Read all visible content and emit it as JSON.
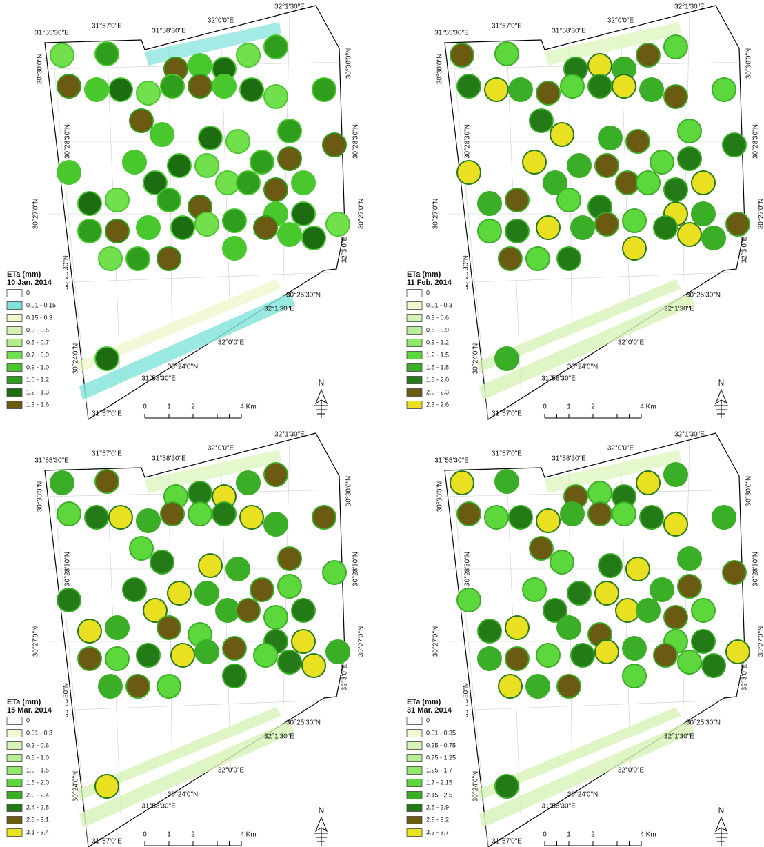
{
  "panels": [
    {
      "legend": {
        "title": "ETa (mm)",
        "date": "10 Jan. 2014",
        "classes": [
          {
            "label": "0",
            "color": "#ffffff"
          },
          {
            "label": "0.01 - 0.15",
            "color": "#7fe3da"
          },
          {
            "label": "0.15 - 0.3",
            "color": "#edf8cc"
          },
          {
            "label": "0.3 - 0.5",
            "color": "#d6f1b4"
          },
          {
            "label": "0.5 - 0.7",
            "color": "#b6ec8c"
          },
          {
            "label": "0.7 - 0.9",
            "color": "#72e04c"
          },
          {
            "label": "0.9 - 1.0",
            "color": "#48c82c"
          },
          {
            "label": "1.0 - 1.2",
            "color": "#2f9e1c"
          },
          {
            "label": "1.2 - 1.3",
            "color": "#1d6c12"
          },
          {
            "label": "1.3 - 1.6",
            "color": "#6b5a12"
          }
        ]
      },
      "coords": [
        "31°55'30\"E",
        "31°57'0\"E",
        "31°58'30\"E",
        "32°0'0\"E",
        "32°1'30\"E",
        "30°30'0\"N",
        "30°28'30\"N",
        "30°27'0\"N",
        "30°25'30\"N",
        "30°24'0\"N",
        "30°30'0\"N",
        "30°28'30\"N",
        "30°27'0\"N",
        "32°3'0\"E",
        "30°25'30\"N",
        "32°1'30\"E",
        "32°0'0\"E",
        "30°24'0\"N",
        "31°58'30\"E",
        "31°57'0\"E"
      ],
      "scale": [
        "0",
        "1",
        "2",
        "4 Km"
      ],
      "north": "N"
    },
    {
      "legend": {
        "title": "ETa (mm)",
        "date": "11 Feb. 2014",
        "classes": [
          {
            "label": "0",
            "color": "#ffffff"
          },
          {
            "label": "0.01 - 0.3",
            "color": "#eefad2"
          },
          {
            "label": "0.3 - 0.6",
            "color": "#d8f3b8"
          },
          {
            "label": "0.6 - 0.9",
            "color": "#b8ee98"
          },
          {
            "label": "0.9 - 1.2",
            "color": "#8ee86a"
          },
          {
            "label": "1.2 - 1.5",
            "color": "#5cd83c"
          },
          {
            "label": "1.5 - 1.8",
            "color": "#3aae26"
          },
          {
            "label": "1.8 - 2.0",
            "color": "#237a16"
          },
          {
            "label": "2.0 - 2.3",
            "color": "#6b5a12"
          },
          {
            "label": "2.3 - 2.6",
            "color": "#e8e020"
          }
        ]
      },
      "coords": [
        "31°55'30\"E",
        "31°57'0\"E",
        "31°58'30\"E",
        "32°0'0\"E",
        "32°1'30\"E",
        "30°30'0\"N",
        "30°28'30\"N",
        "30°27'0\"N",
        "30°25'30\"N",
        "30°24'0\"N",
        "30°30'0\"N",
        "30°28'30\"N",
        "30°27'0\"N",
        "32°3'0\"E",
        "30°25'30\"N",
        "32°1'30\"E",
        "32°0'0\"E",
        "30°24'0\"N",
        "31°58'30\"E",
        "31°57'0\"E"
      ],
      "scale": [
        "0",
        "1",
        "2",
        "4 Km"
      ],
      "north": "N"
    },
    {
      "legend": {
        "title": "ETa (mm)",
        "date": "15 Mar. 2014",
        "classes": [
          {
            "label": "0",
            "color": "#ffffff"
          },
          {
            "label": "0.01 - 0.3",
            "color": "#eefad2"
          },
          {
            "label": "0.3 - 0.6",
            "color": "#d8f3b8"
          },
          {
            "label": "0.6 - 1.0",
            "color": "#b8ee98"
          },
          {
            "label": "1.0 - 1.5",
            "color": "#8ee86a"
          },
          {
            "label": "1.5 - 2.0",
            "color": "#5cd83c"
          },
          {
            "label": "2.0 - 2.4",
            "color": "#3aae26"
          },
          {
            "label": "2.4 - 2.8",
            "color": "#237a16"
          },
          {
            "label": "2.8 - 3.1",
            "color": "#6b5a12"
          },
          {
            "label": "3.1 - 3.4",
            "color": "#e8e020"
          }
        ]
      },
      "coords": [
        "31°55'30\"E",
        "31°57'0\"E",
        "31°58'30\"E",
        "32°0'0\"E",
        "32°1'30\"E",
        "30°30'0\"N",
        "30°28'30\"N",
        "30°27'0\"N",
        "30°25'30\"N",
        "30°24'0\"N",
        "30°30'0\"N",
        "30°28'30\"N",
        "30°27'0\"N",
        "32°3'0\"E",
        "30°25'30\"N",
        "32°1'30\"E",
        "32°0'0\"E",
        "30°24'0\"N",
        "31°58'30\"E",
        "31°57'0\"E"
      ],
      "scale": [
        "0",
        "1",
        "2",
        "4 Km"
      ],
      "north": "N"
    },
    {
      "legend": {
        "title": "ETa (mm)",
        "date": "31 Mar. 2014",
        "classes": [
          {
            "label": "0",
            "color": "#ffffff"
          },
          {
            "label": "0.01 - 0.35",
            "color": "#eefad2"
          },
          {
            "label": "0.35 - 0.75",
            "color": "#d8f3b8"
          },
          {
            "label": "0.75 - 1.25",
            "color": "#b8ee98"
          },
          {
            "label": "1.25 - 1.7",
            "color": "#8ee86a"
          },
          {
            "label": "1.7 - 2.15",
            "color": "#5cd83c"
          },
          {
            "label": "2.15 - 2.5",
            "color": "#3aae26"
          },
          {
            "label": "2.5 - 2.9",
            "color": "#237a16"
          },
          {
            "label": "2.9 - 3.2",
            "color": "#6b5a12"
          },
          {
            "label": "3.2 - 3.7",
            "color": "#e8e020"
          }
        ]
      },
      "coords": [
        "31°55'30\"E",
        "31°57'0\"E",
        "31°58'30\"E",
        "32°0'0\"E",
        "32°1'30\"E",
        "30°30'0\"N",
        "30°28'30\"N",
        "30°27'0\"N",
        "30°25'30\"N",
        "30°24'0\"N",
        "30°30'0\"N",
        "30°28'30\"N",
        "30°27'0\"N",
        "32°3'0\"E",
        "30°25'30\"N",
        "32°1'30\"E",
        "32°0'0\"E",
        "30°24'0\"N",
        "31°58'30\"E",
        "31°57'0\"E"
      ],
      "scale": [
        "0",
        "1",
        "2",
        "4 Km"
      ],
      "north": "N"
    }
  ]
}
